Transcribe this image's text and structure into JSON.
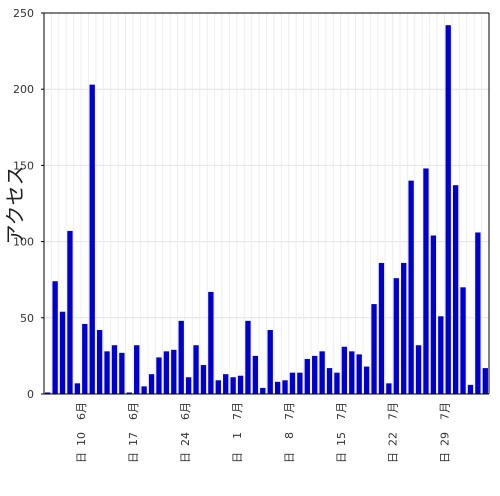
{
  "chart_data": {
    "type": "bar",
    "ylabel": "アクセス",
    "ylim": [
      0,
      250
    ],
    "yticks": [
      0,
      50,
      100,
      150,
      200,
      250
    ],
    "grid": true,
    "bar_color": "#0000cc",
    "values": [
      1,
      74,
      54,
      107,
      7,
      46,
      203,
      42,
      28,
      32,
      27,
      1,
      32,
      5,
      13,
      24,
      28,
      29,
      48,
      11,
      32,
      19,
      67,
      9,
      13,
      11,
      12,
      48,
      25,
      4,
      42,
      8,
      9,
      14,
      14,
      23,
      25,
      28,
      17,
      14,
      31,
      28,
      26,
      18,
      59,
      86,
      7,
      76,
      86,
      140,
      32,
      148,
      104,
      51,
      242,
      137,
      70,
      6,
      106,
      17
    ],
    "xtick_labels": [
      {
        "index": 6,
        "lines": [
          "6月",
          "10",
          "日"
        ]
      },
      {
        "index": 13,
        "lines": [
          "6月",
          "17",
          "日"
        ]
      },
      {
        "index": 20,
        "lines": [
          "6月",
          "24",
          "日"
        ]
      },
      {
        "index": 27,
        "lines": [
          "7月",
          "1",
          "日"
        ]
      },
      {
        "index": 34,
        "lines": [
          "7月",
          "8",
          "日"
        ]
      },
      {
        "index": 41,
        "lines": [
          "7月",
          "15",
          "日"
        ]
      },
      {
        "index": 48,
        "lines": [
          "7月",
          "22",
          "日"
        ]
      },
      {
        "index": 55,
        "lines": [
          "7月",
          "29",
          "日"
        ]
      }
    ]
  }
}
